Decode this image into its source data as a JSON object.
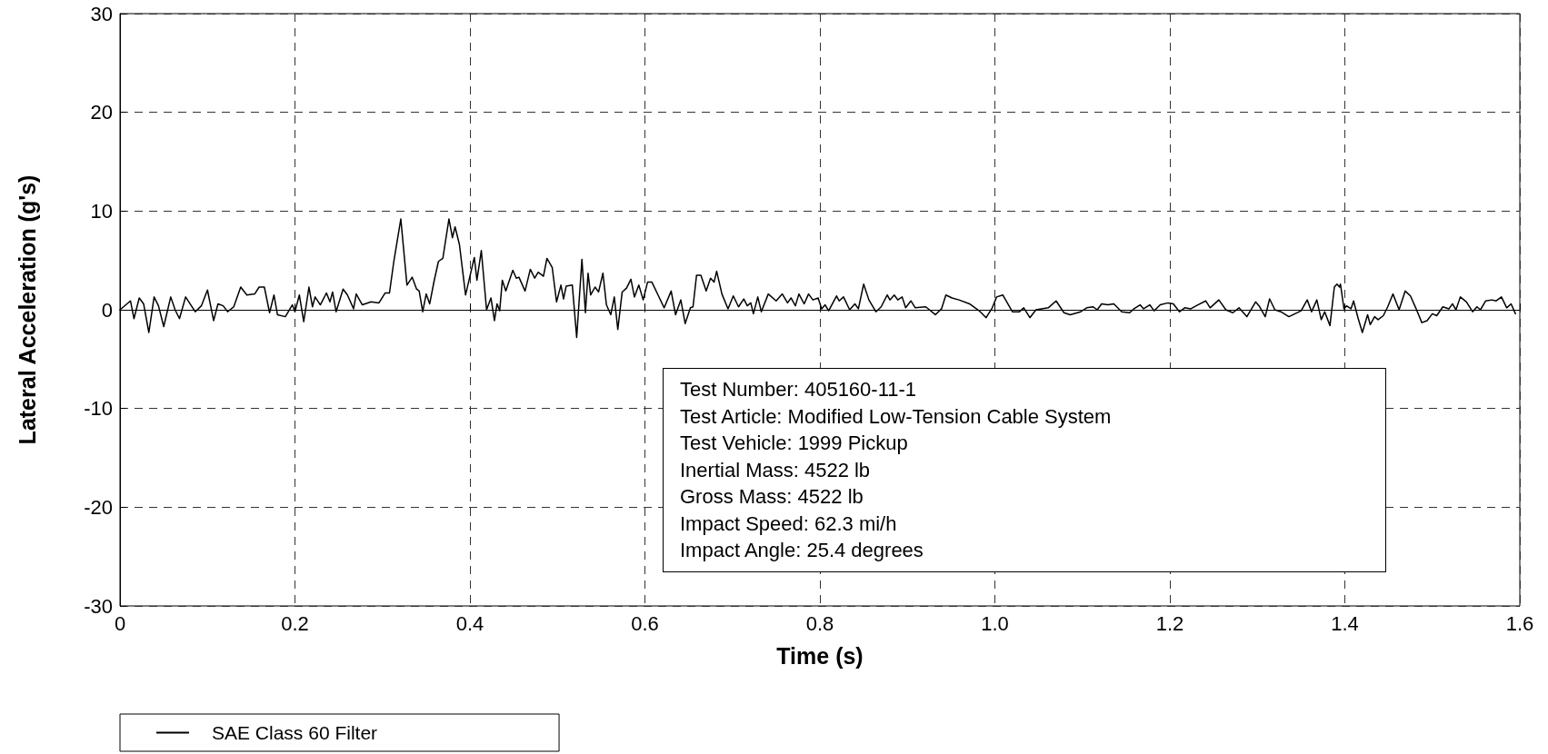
{
  "chart_data": {
    "type": "line",
    "xlabel": "Time (s)",
    "ylabel": "Lateral Acceleration (g's)",
    "xlim": [
      0,
      1.6
    ],
    "xticks": [
      0,
      0.2,
      0.4,
      0.6,
      0.8,
      {
        "value": 1,
        "label": "1.0"
      },
      1.2,
      1.4,
      1.6
    ],
    "ylim": [
      -30,
      30
    ],
    "yticks": [
      -30,
      -20,
      -10,
      0,
      10,
      20,
      30
    ],
    "grid": true,
    "legend": "bottom left",
    "marker": "none",
    "line_style": "solid",
    "annotations": [
      "Test Number: 405160-11-1",
      "Test Article: Modified Low-Tension Cable System",
      "Test Vehicle: 1999 Pickup",
      "Inertial Mass: 4522 lb",
      "Gross Mass: 4522 lb",
      "Impact Speed: 62.3 mi/h",
      "Impact Angle: 25.4 degrees"
    ],
    "series": [
      {
        "name": "SAE Class 60 Filter",
        "color": "#000000",
        "x": [
          0,
          0.012,
          0.016,
          0.022,
          0.027,
          0.033,
          0.039,
          0.044,
          0.05,
          0.058,
          0.063,
          0.068,
          0.075,
          0.086,
          0.093,
          0.1,
          0.107,
          0.112,
          0.118,
          0.123,
          0.13,
          0.138,
          0.145,
          0.154,
          0.159,
          0.165,
          0.171,
          0.176,
          0.18,
          0.189,
          0.197,
          0.2,
          0.205,
          0.21,
          0.216,
          0.22,
          0.223,
          0.229,
          0.236,
          0.24,
          0.243,
          0.247,
          0.255,
          0.26,
          0.267,
          0.27,
          0.277,
          0.287,
          0.296,
          0.303,
          0.308,
          0.313,
          0.321,
          0.328,
          0.334,
          0.339,
          0.342,
          0.346,
          0.35,
          0.354,
          0.359,
          0.364,
          0.369,
          0.376,
          0.38,
          0.383,
          0.388,
          0.395,
          0.405,
          0.408,
          0.413,
          0.419,
          0.424,
          0.428,
          0.431,
          0.434,
          0.437,
          0.441,
          0.449,
          0.453,
          0.456,
          0.463,
          0.469,
          0.474,
          0.478,
          0.484,
          0.488,
          0.494,
          0.499,
          0.504,
          0.507,
          0.51,
          0.517,
          0.522,
          0.528,
          0.532,
          0.535,
          0.538,
          0.543,
          0.547,
          0.552,
          0.556,
          0.561,
          0.565,
          0.569,
          0.574,
          0.579,
          0.584,
          0.588,
          0.593,
          0.598,
          0.603,
          0.608,
          0.615,
          0.622,
          0.63,
          0.635,
          0.641,
          0.646,
          0.652,
          0.655,
          0.659,
          0.664,
          0.67,
          0.675,
          0.679,
          0.682,
          0.688,
          0.695,
          0.701,
          0.707,
          0.713,
          0.717,
          0.721,
          0.724,
          0.729,
          0.733,
          0.741,
          0.75,
          0.757,
          0.763,
          0.767,
          0.772,
          0.776,
          0.782,
          0.787,
          0.792,
          0.798,
          0.802,
          0.806,
          0.81,
          0.819,
          0.822,
          0.827,
          0.834,
          0.84,
          0.844,
          0.85,
          0.856,
          0.864,
          0.87,
          0.877,
          0.88,
          0.885,
          0.889,
          0.894,
          0.898,
          0.904,
          0.909,
          0.921,
          0.932,
          0.939,
          0.944,
          0.951,
          0.959,
          0.971,
          0.982,
          0.99,
          0.997,
          1.002,
          1.009,
          1.02,
          1.028,
          1.033,
          1.04,
          1.047,
          1.061,
          1.07,
          1.079,
          1.086,
          1.098,
          1.105,
          1.112,
          1.117,
          1.122,
          1.129,
          1.136,
          1.145,
          1.154,
          1.159,
          1.166,
          1.17,
          1.177,
          1.182,
          1.189,
          1.198,
          1.204,
          1.211,
          1.217,
          1.224,
          1.232,
          1.241,
          1.246,
          1.256,
          1.264,
          1.272,
          1.279,
          1.288,
          1.298,
          1.302,
          1.309,
          1.314,
          1.32,
          1.327,
          1.336,
          1.35,
          1.357,
          1.362,
          1.368,
          1.373,
          1.377,
          1.383,
          1.388,
          1.391,
          1.394,
          1.395,
          1.399,
          1.402,
          1.407,
          1.41,
          1.415,
          1.42,
          1.426,
          1.429,
          1.434,
          1.438,
          1.444,
          1.449,
          1.455,
          1.462,
          1.469,
          1.475,
          1.481,
          1.488,
          1.494,
          1.5,
          1.505,
          1.512,
          1.519,
          1.523,
          1.527,
          1.532,
          1.539,
          1.546,
          1.551,
          1.555,
          1.561,
          1.568,
          1.573,
          1.579,
          1.585,
          1.59,
          1.595
        ],
        "values": [
          0,
          0.9,
          -0.9,
          1.2,
          0.6,
          -2.3,
          1.3,
          0.4,
          -1.7,
          1.3,
          0,
          -0.9,
          1.3,
          -0.2,
          0.4,
          2,
          -1.1,
          0.6,
          0.4,
          -0.2,
          0.3,
          2.3,
          1.5,
          1.6,
          2.3,
          2.3,
          -0.3,
          1.5,
          -0.5,
          -0.7,
          0.5,
          -0.2,
          1.5,
          -1.2,
          2.3,
          0.3,
          1.3,
          0.5,
          1.7,
          0.8,
          1.8,
          -0.2,
          2.1,
          1.5,
          0.1,
          1.6,
          0.5,
          0.8,
          0.7,
          1.7,
          1.7,
          4.9,
          9.2,
          2.5,
          3.3,
          2.1,
          1.9,
          -0.2,
          1.6,
          0.6,
          2.9,
          4.9,
          5.2,
          9.2,
          7.3,
          8.4,
          6.6,
          1.5,
          5.3,
          3,
          6,
          0,
          1.2,
          -1.1,
          0.6,
          -0.1,
          3,
          1.9,
          4,
          3.2,
          3.3,
          1.9,
          4.1,
          3.2,
          3.8,
          3.4,
          5.2,
          4.3,
          0.8,
          2.5,
          1.1,
          2.4,
          2.5,
          -2.8,
          5.1,
          -0.3,
          3.7,
          1.5,
          2.3,
          1.8,
          3.7,
          0.5,
          -0.5,
          1.3,
          -2,
          1.8,
          2.2,
          3.1,
          1.3,
          2.5,
          1,
          2.8,
          2.8,
          1.5,
          0.2,
          1.9,
          -0.5,
          1,
          -1.4,
          0.2,
          0.3,
          3.5,
          3.5,
          1.9,
          3.2,
          2.8,
          3.9,
          1.6,
          0.1,
          1.4,
          0.3,
          1.1,
          0.4,
          0.7,
          -0.4,
          1.3,
          -0.2,
          1.6,
          0.9,
          1.6,
          0.7,
          1.2,
          0.4,
          1.6,
          0.6,
          1.6,
          1,
          1.2,
          0.1,
          0.5,
          -0.1,
          1.4,
          0.9,
          1.3,
          0,
          0.6,
          0.1,
          2.6,
          1,
          -0.2,
          0.3,
          1.5,
          1,
          1.5,
          1,
          1.3,
          0.2,
          0.9,
          0.2,
          0.3,
          -0.5,
          0.1,
          1.5,
          1.2,
          1,
          0.6,
          -0.1,
          -0.8,
          0.2,
          1.3,
          1.5,
          -0.2,
          -0.2,
          0.2,
          -0.8,
          0,
          0.2,
          0.9,
          -0.3,
          -0.5,
          -0.2,
          0.2,
          0.3,
          0,
          0.6,
          0.5,
          0.6,
          -0.2,
          -0.3,
          0.1,
          0.5,
          0.1,
          0.5,
          -0.1,
          0.5,
          0.7,
          0.6,
          -0.2,
          0.2,
          0.1,
          0.5,
          0.9,
          0.2,
          1,
          0,
          -0.3,
          0.2,
          -0.7,
          0.8,
          0.4,
          -0.7,
          1.1,
          0,
          -0.2,
          -0.7,
          -0.1,
          1,
          -0.2,
          1,
          -1,
          -0.2,
          -1.6,
          2.3,
          2.6,
          2.3,
          2.6,
          0.1,
          0.4,
          0.1,
          0.9,
          -0.8,
          -2.3,
          -0.5,
          -1.5,
          -0.7,
          -1,
          -0.6,
          0.3,
          1.6,
          0,
          1.9,
          1.4,
          0.2,
          -1.3,
          -1.1,
          -0.4,
          -0.6,
          0.3,
          0.1,
          0.6,
          0,
          1.3,
          0.8,
          -0.2,
          0.3,
          0,
          0.9,
          1,
          0.9,
          1.3,
          0.2,
          0.6,
          -0.4
        ]
      }
    ]
  }
}
